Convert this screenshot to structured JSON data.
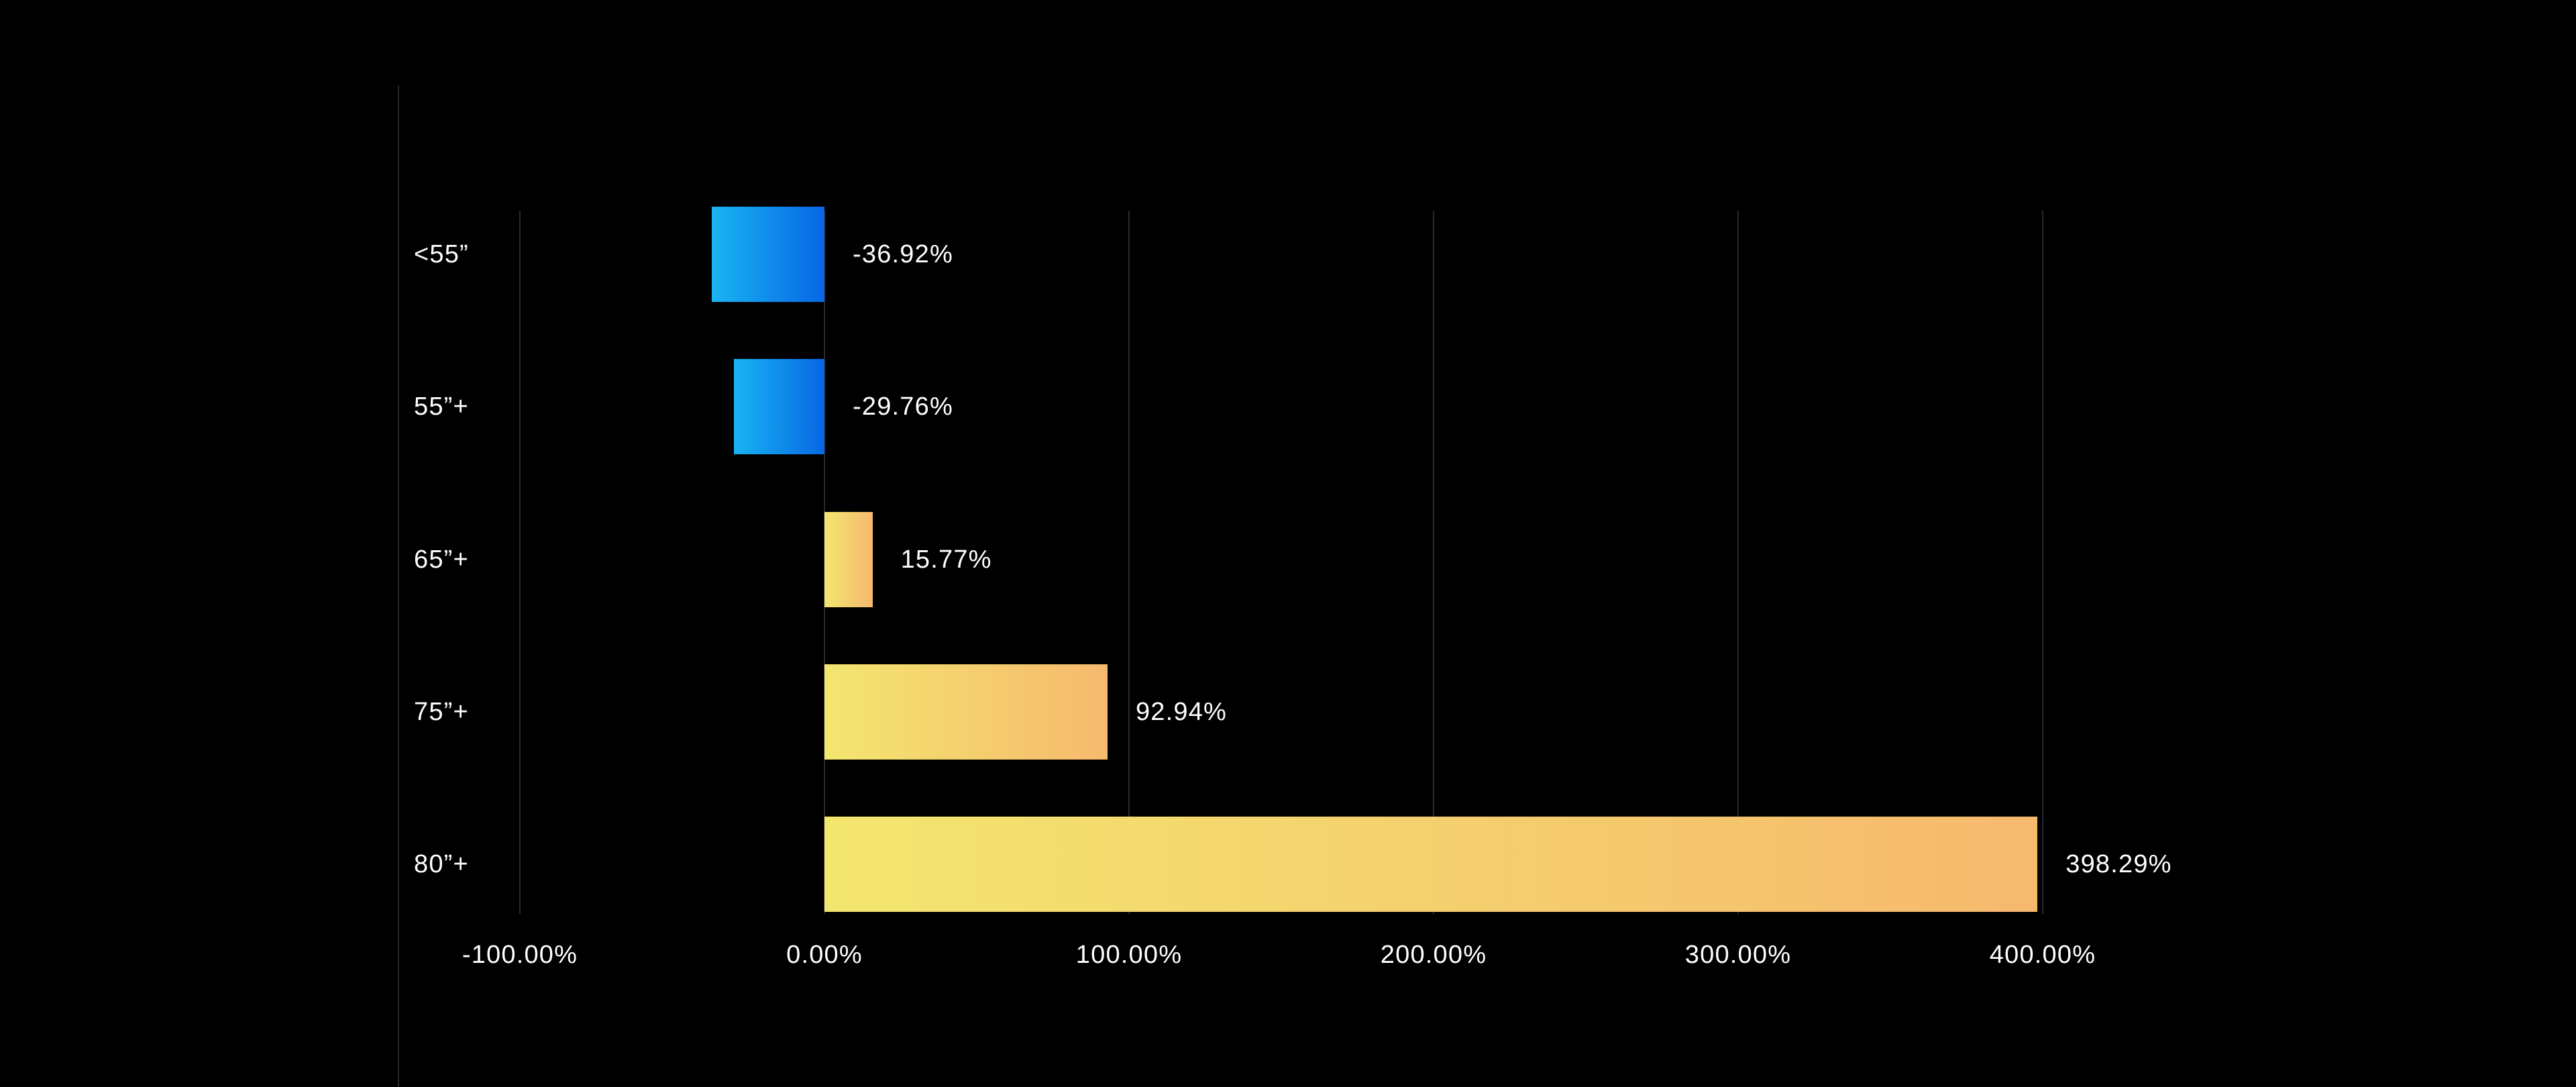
{
  "page": {
    "background": "#000000"
  },
  "divider": {
    "color": "#282828"
  },
  "chart": {
    "text_color": "#ffffff",
    "grid_color": "#2a2a2c",
    "negative_gradient": [
      "#19b4f2",
      "#0767e4"
    ],
    "positive_gradient": [
      "#f3e66f",
      "#f6b96e"
    ]
  },
  "chart_data": {
    "type": "bar",
    "orientation": "horizontal",
    "title": "",
    "categories": [
      "<55”",
      "55”+",
      "65”+",
      "75”+",
      "80”+"
    ],
    "values": [
      -36.92,
      -29.76,
      15.77,
      92.94,
      398.29
    ],
    "value_labels": [
      "-36.92%",
      "-29.76%",
      "15.77%",
      "92.94%",
      "398.29%"
    ],
    "x_ticks": [
      -100,
      0,
      100,
      200,
      300,
      400
    ],
    "x_tick_labels": [
      "-100.00%",
      "0.00%",
      "100.00%",
      "200.00%",
      "300.00%",
      "400.00%"
    ],
    "xlim": [
      -100,
      400
    ],
    "xlabel": "",
    "ylabel": "",
    "grid": "vertical-only",
    "legend": "none",
    "bar_color_rule": "negative bars blue gradient, positive bars yellow-orange gradient, light end at left"
  }
}
